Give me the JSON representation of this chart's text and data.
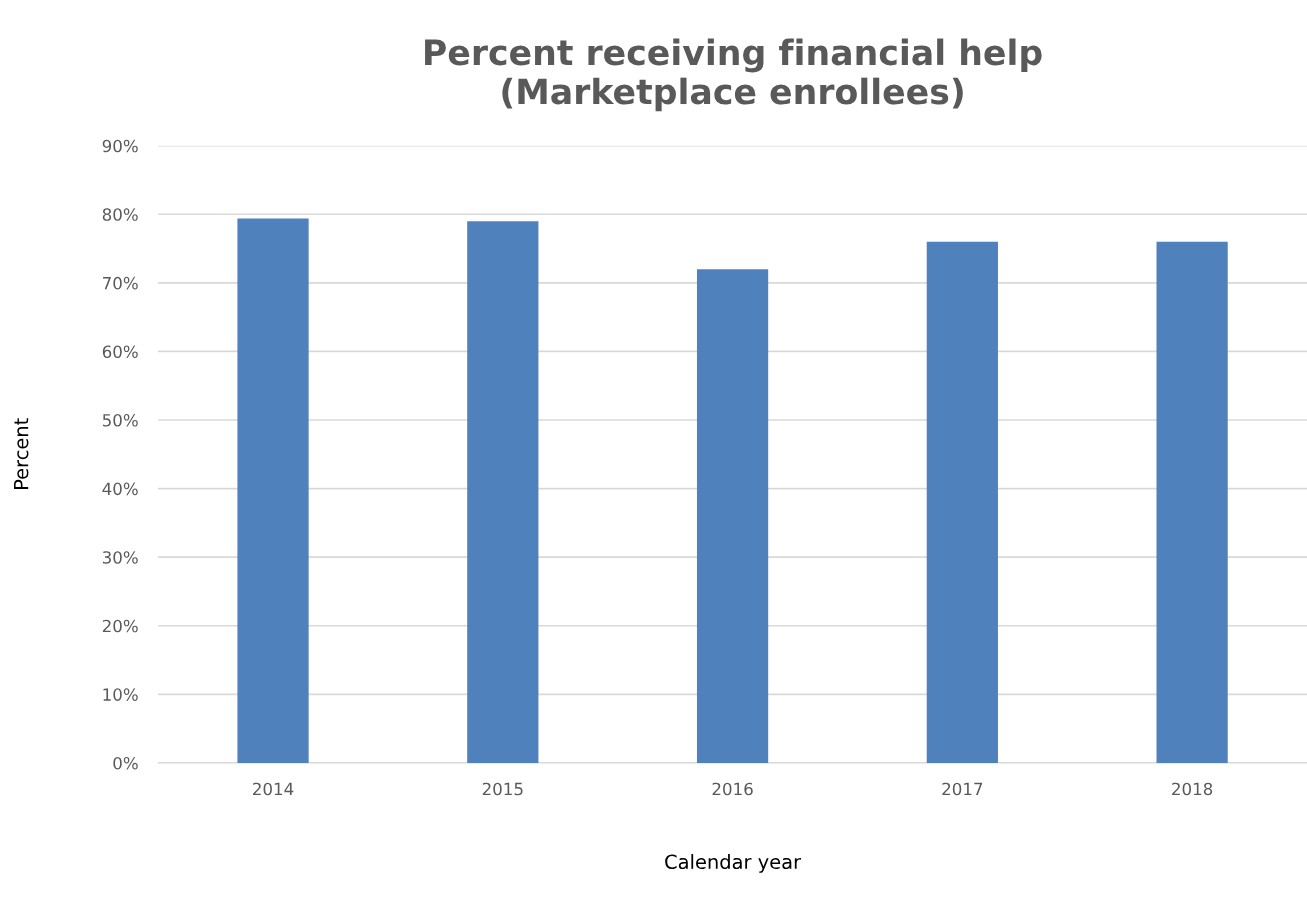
{
  "chart_data": {
    "type": "bar",
    "title": "Percent receiving financial help\n(Marketplace enrollees)",
    "xlabel": "Calendar year",
    "ylabel": "Percent",
    "categories": [
      "2014",
      "2015",
      "2016",
      "2017",
      "2018"
    ],
    "values": [
      79.4,
      79,
      72,
      76,
      76
    ],
    "color": "#4f81bd",
    "ylim": [
      0,
      90
    ],
    "yticks": [
      {
        "value": 0,
        "label": "0%"
      },
      {
        "value": 10,
        "label": "10%"
      },
      {
        "value": 20,
        "label": "20%"
      },
      {
        "value": 30,
        "label": "30%"
      },
      {
        "value": 40,
        "label": "40%"
      },
      {
        "value": 50,
        "label": "50%"
      },
      {
        "value": 60,
        "label": "60%"
      },
      {
        "value": 70,
        "label": "70%"
      },
      {
        "value": 80,
        "label": "80%"
      },
      {
        "value": 90,
        "label": "90%"
      }
    ],
    "grid": "y"
  }
}
